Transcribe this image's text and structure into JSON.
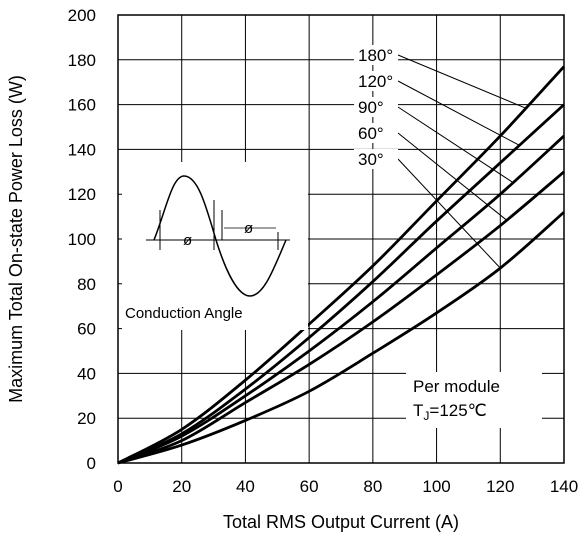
{
  "chart_data": {
    "type": "line",
    "xlabel": "Total RMS Output Current (A)",
    "ylabel": "Maximum Total On-state Power Loss (W)",
    "xlim": [
      0,
      140
    ],
    "ylim": [
      0,
      200
    ],
    "x_ticks": [
      "0",
      "20",
      "40",
      "60",
      "80",
      "100",
      "120",
      "140"
    ],
    "y_ticks": [
      "0",
      "20",
      "40",
      "60",
      "80",
      "100",
      "120",
      "140",
      "160",
      "180",
      "200"
    ],
    "grid": true,
    "x": [
      0,
      20,
      40,
      60,
      80,
      100,
      120,
      140
    ],
    "series": [
      {
        "name": "180°",
        "values": [
          0,
          15,
          37,
          62,
          88,
          117,
          146,
          177
        ]
      },
      {
        "name": "120°",
        "values": [
          0,
          13,
          33,
          56,
          81,
          108,
          134,
          160
        ]
      },
      {
        "name": "90°",
        "values": [
          0,
          12,
          30,
          50,
          72,
          96,
          120,
          146
        ]
      },
      {
        "name": "60°",
        "values": [
          0,
          10,
          27,
          44,
          63,
          84,
          106,
          130
        ]
      },
      {
        "name": "30°",
        "values": [
          0,
          8,
          19,
          32,
          49,
          67,
          87,
          112
        ]
      }
    ],
    "annotations": {
      "note_line1": "Per module",
      "note_line2_prefix": "T",
      "note_line2_sub": "J",
      "note_line2_suffix": "=125℃",
      "inset_label": "Conduction Angle",
      "inset_phi": "ø"
    }
  }
}
